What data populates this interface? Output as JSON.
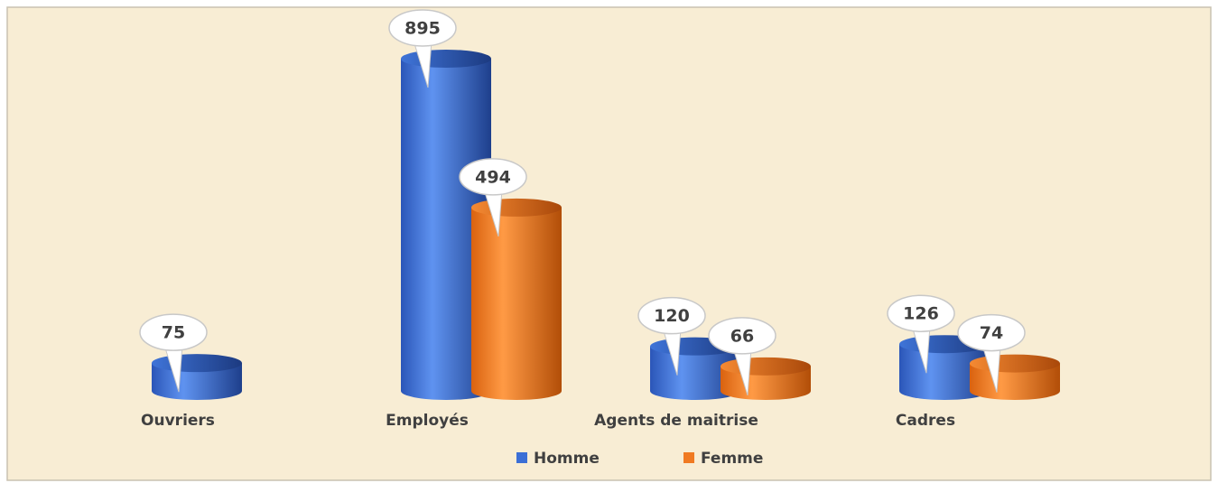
{
  "chart_data": {
    "type": "bar",
    "categories": [
      "Ouvriers",
      "Employés",
      "Agents de maitrise",
      "Cadres"
    ],
    "series": [
      {
        "name": "Homme",
        "color": "#3b6fd6",
        "values": [
          75,
          895,
          120,
          126
        ]
      },
      {
        "name": "Femme",
        "color": "#f07a22",
        "values": [
          null,
          494,
          66,
          74
        ]
      }
    ],
    "legend": "bottom"
  }
}
